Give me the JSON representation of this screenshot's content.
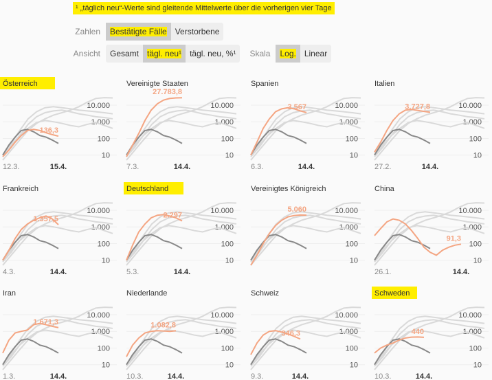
{
  "note": "¹ „täglich neu“-Werte sind gleitende Mittelwerte über die vorherigen vier Tage",
  "controls": [
    {
      "label": "Zahlen",
      "groups": [
        {
          "options": [
            "Bestätigte Fälle",
            "Verstorbene"
          ],
          "selected": 0
        }
      ]
    },
    {
      "label": "Ansicht",
      "groups": [
        {
          "options": [
            "Gesamt",
            "tägl. neu¹",
            "tägl. neu, %¹"
          ],
          "selected": 1
        }
      ],
      "second_label": "Skala",
      "second_groups": [
        {
          "options": [
            "Log.",
            "Linear"
          ],
          "selected": 0
        }
      ]
    }
  ],
  "shared_series": {
    "comparison_color": "#d9d9d9",
    "comparison": [
      [
        10,
        50,
        300,
        1500,
        4000,
        7000,
        8000,
        7000,
        6000,
        5000,
        4500,
        4000,
        3500,
        3000
      ],
      [
        8,
        30,
        150,
        700,
        2000,
        3500,
        4500,
        5000,
        4000,
        3000,
        2500,
        2000,
        1800,
        1500
      ],
      [
        5,
        20,
        80,
        300,
        800,
        1500,
        2500,
        3500,
        5000,
        8000,
        15000,
        25000,
        28000,
        27000
      ],
      [
        10,
        40,
        150,
        400,
        900,
        1200,
        1000,
        800,
        600,
        500,
        700,
        900,
        600,
        400
      ]
    ],
    "reference_color": "#888888",
    "reference": [
      10,
      40,
      120,
      300,
      350,
      250,
      150,
      120,
      80,
      50
    ]
  },
  "chart_data": [
    {
      "type": "line",
      "title": "Österreich",
      "highlight": true,
      "log_scale": true,
      "ylim": [
        5,
        50000
      ],
      "yticks": [
        10,
        100,
        {
          "value": 1000,
          "label": "1.000"
        },
        {
          "value": 10000,
          "label": "10.000"
        }
      ],
      "x_labels": [
        "12.3.",
        "15.4."
      ],
      "series": [
        {
          "color": "#f4a582",
          "values": [
            8,
            20,
            60,
            150,
            300,
            350,
            300,
            220,
            170,
            136.3
          ],
          "value_labels": [
            null,
            null,
            null,
            null,
            null,
            null,
            null,
            null,
            null,
            "136,3"
          ]
        }
      ]
    },
    {
      "type": "line",
      "title": "Vereinigte Staaten",
      "highlight": false,
      "log_scale": true,
      "ylim": [
        5,
        50000
      ],
      "yticks": [
        10,
        100,
        {
          "value": 1000,
          "label": "1.000"
        },
        {
          "value": 10000,
          "label": "10.000"
        }
      ],
      "x_labels": [
        "7.3.",
        "14.4."
      ],
      "series": [
        {
          "color": "#f4a582",
          "values": [
            8,
            40,
            200,
            1200,
            5000,
            12000,
            20000,
            25000,
            27000,
            27783.8
          ],
          "value_labels": [
            null,
            null,
            null,
            null,
            null,
            null,
            null,
            null,
            null,
            "27.783,8"
          ]
        }
      ]
    },
    {
      "type": "line",
      "title": "Spanien",
      "highlight": false,
      "log_scale": true,
      "ylim": [
        5,
        50000
      ],
      "yticks": [
        10,
        100,
        {
          "value": 1000,
          "label": "1.000"
        },
        {
          "value": 10000,
          "label": "10.000"
        }
      ],
      "x_labels": [
        "6.3.",
        "14.4."
      ],
      "series": [
        {
          "color": "#f4a582",
          "values": [
            10,
            60,
            400,
            1500,
            4000,
            6000,
            7000,
            6000,
            4500,
            3567
          ],
          "value_labels": [
            null,
            null,
            null,
            null,
            null,
            null,
            null,
            null,
            null,
            "3.567"
          ]
        }
      ]
    },
    {
      "type": "line",
      "title": "Italien",
      "highlight": false,
      "log_scale": true,
      "ylim": [
        5,
        50000
      ],
      "yticks": [
        10,
        100,
        {
          "value": 1000,
          "label": "1.000"
        },
        {
          "value": 10000,
          "label": "10.000"
        }
      ],
      "x_labels": [
        "27.2.",
        "14.4."
      ],
      "series": [
        {
          "color": "#f4a582",
          "values": [
            15,
            60,
            300,
            1200,
            3000,
            5000,
            5500,
            4800,
            4200,
            3727.8
          ],
          "value_labels": [
            null,
            null,
            null,
            null,
            null,
            null,
            null,
            null,
            null,
            "3.727,8"
          ]
        }
      ]
    },
    {
      "type": "line",
      "title": "Frankreich",
      "highlight": false,
      "log_scale": true,
      "ylim": [
        5,
        50000
      ],
      "yticks": [
        10,
        100,
        {
          "value": 1000,
          "label": "1.000"
        },
        {
          "value": 10000,
          "label": "10.000"
        }
      ],
      "x_labels": [
        "4.3.",
        "14.4."
      ],
      "series": [
        {
          "color": "#f4a582",
          "values": [
            10,
            40,
            200,
            700,
            1500,
            2500,
            3500,
            4500,
            3000,
            1357.5
          ],
          "value_labels": [
            null,
            null,
            null,
            null,
            null,
            null,
            null,
            null,
            null,
            "1.357,5"
          ]
        }
      ]
    },
    {
      "type": "line",
      "title": "Deutschland",
      "highlight": true,
      "log_scale": true,
      "ylim": [
        5,
        50000
      ],
      "yticks": [
        10,
        100,
        {
          "value": 1000,
          "label": "1.000"
        },
        {
          "value": 10000,
          "label": "10.000"
        }
      ],
      "x_labels": [
        "5.3.",
        "14.4."
      ],
      "series": [
        {
          "color": "#f4a582",
          "values": [
            10,
            80,
            500,
            1500,
            3500,
            5000,
            5500,
            4500,
            3500,
            2297
          ],
          "value_labels": [
            null,
            null,
            null,
            null,
            null,
            null,
            null,
            null,
            null,
            "2.297"
          ]
        }
      ]
    },
    {
      "type": "line",
      "title": "Vereinigtes Königreich",
      "highlight": false,
      "log_scale": true,
      "ylim": [
        5,
        50000
      ],
      "yticks": [
        10,
        100,
        {
          "value": 1000,
          "label": "1.000"
        },
        {
          "value": 10000,
          "label": "10.000"
        }
      ],
      "x_labels": [],
      "series": [
        {
          "color": "#f4a582",
          "values": [
            5,
            20,
            100,
            400,
            1200,
            2500,
            4000,
            4800,
            5200,
            5060
          ],
          "value_labels": [
            null,
            null,
            null,
            null,
            null,
            null,
            null,
            null,
            null,
            "5.060"
          ]
        }
      ]
    },
    {
      "type": "line",
      "title": "China",
      "highlight": false,
      "log_scale": true,
      "ylim": [
        5,
        50000
      ],
      "yticks": [
        10,
        100,
        {
          "value": 1000,
          "label": "1.000"
        },
        {
          "value": 10000,
          "label": "10.000"
        }
      ],
      "x_labels": [
        "26.1.",
        "14.4."
      ],
      "series": [
        {
          "color": "#f4a582",
          "values": [
            300,
            800,
            2000,
            3000,
            2500,
            1500,
            600,
            200,
            60,
            30,
            20,
            40,
            60,
            80,
            91.3
          ],
          "value_labels": [
            null,
            null,
            null,
            null,
            null,
            null,
            null,
            null,
            null,
            null,
            null,
            null,
            null,
            null,
            "91,3"
          ]
        }
      ]
    },
    {
      "type": "line",
      "title": "Iran",
      "highlight": false,
      "log_scale": true,
      "ylim": [
        5,
        50000
      ],
      "yticks": [
        10,
        100,
        {
          "value": 1000,
          "label": "1.000"
        },
        {
          "value": 10000,
          "label": "10.000"
        }
      ],
      "x_labels": [
        "1.3.",
        "14.4."
      ],
      "series": [
        {
          "color": "#f4a582",
          "values": [
            50,
            300,
            800,
            1000,
            1200,
            2500,
            3000,
            2500,
            2000,
            1671.3
          ],
          "value_labels": [
            null,
            null,
            null,
            null,
            null,
            null,
            null,
            null,
            null,
            "1.671,3"
          ]
        }
      ]
    },
    {
      "type": "line",
      "title": "Niederlande",
      "highlight": false,
      "log_scale": true,
      "ylim": [
        5,
        50000
      ],
      "yticks": [
        10,
        100,
        {
          "value": 1000,
          "label": "1.000"
        },
        {
          "value": 10000,
          "label": "10.000"
        }
      ],
      "x_labels": [
        "10.3.",
        "14.4."
      ],
      "series": [
        {
          "color": "#f4a582",
          "values": [
            30,
            150,
            400,
            800,
            1000,
            1100,
            1050,
            1000,
            1082.8
          ],
          "value_labels": [
            null,
            null,
            null,
            null,
            null,
            null,
            null,
            null,
            "1.082,8"
          ]
        }
      ]
    },
    {
      "type": "line",
      "title": "Schweiz",
      "highlight": false,
      "log_scale": true,
      "ylim": [
        5,
        50000
      ],
      "yticks": [
        10,
        100,
        {
          "value": 1000,
          "label": "1.000"
        },
        {
          "value": 10000,
          "label": "10.000"
        }
      ],
      "x_labels": [
        "9.3.",
        "14.4."
      ],
      "series": [
        {
          "color": "#f4a582",
          "values": [
            40,
            200,
            600,
            1000,
            1100,
            900,
            700,
            500,
            346.3
          ],
          "value_labels": [
            null,
            null,
            null,
            null,
            null,
            null,
            null,
            null,
            "346,3"
          ]
        }
      ]
    },
    {
      "type": "line",
      "title": "Schweden",
      "highlight": true,
      "log_scale": true,
      "ylim": [
        5,
        50000
      ],
      "yticks": [
        10,
        100,
        {
          "value": 1000,
          "label": "1.000"
        },
        {
          "value": 10000,
          "label": "10.000"
        }
      ],
      "x_labels": [
        "10.3.",
        "14.4."
      ],
      "series": [
        {
          "color": "#f4a582",
          "values": [
            50,
            100,
            150,
            200,
            300,
            400,
            450,
            460,
            440
          ],
          "value_labels": [
            null,
            null,
            null,
            null,
            null,
            null,
            null,
            null,
            "440"
          ]
        }
      ]
    }
  ]
}
